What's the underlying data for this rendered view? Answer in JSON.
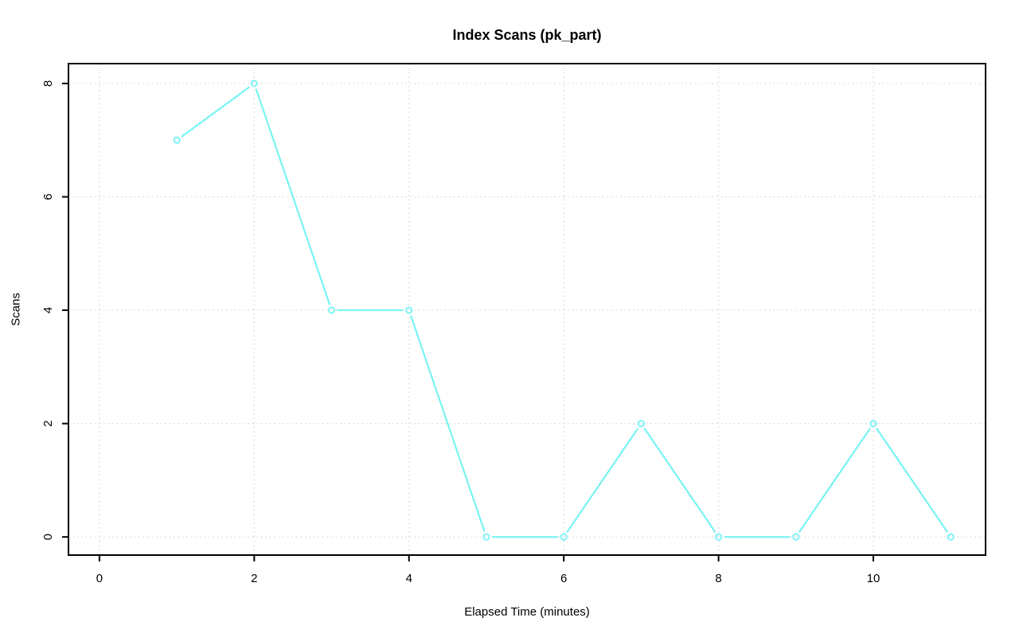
{
  "chart_data": {
    "type": "line",
    "title": "Index Scans (pk_part)",
    "xlabel": "Elapsed Time (minutes)",
    "ylabel": "Scans",
    "series": [
      {
        "name": "pk_part",
        "x": [
          1,
          2,
          3,
          4,
          5,
          6,
          7,
          8,
          9,
          10,
          11
        ],
        "y": [
          7,
          8,
          4,
          4,
          0,
          0,
          2,
          0,
          0,
          2,
          0
        ]
      }
    ],
    "xticks": [
      0,
      2,
      4,
      6,
      8,
      10
    ],
    "yticks": [
      0,
      2,
      4,
      6,
      8
    ],
    "xlim": [
      -0.4,
      11.45
    ],
    "ylim": [
      -0.32,
      8.35
    ],
    "grid": true,
    "legend": "none",
    "marker": "open-circle",
    "line_color": "#78F4F4",
    "grid_color": "#D4D4D4",
    "axis_color": "#000000",
    "background_color": "#FFFFFF"
  }
}
